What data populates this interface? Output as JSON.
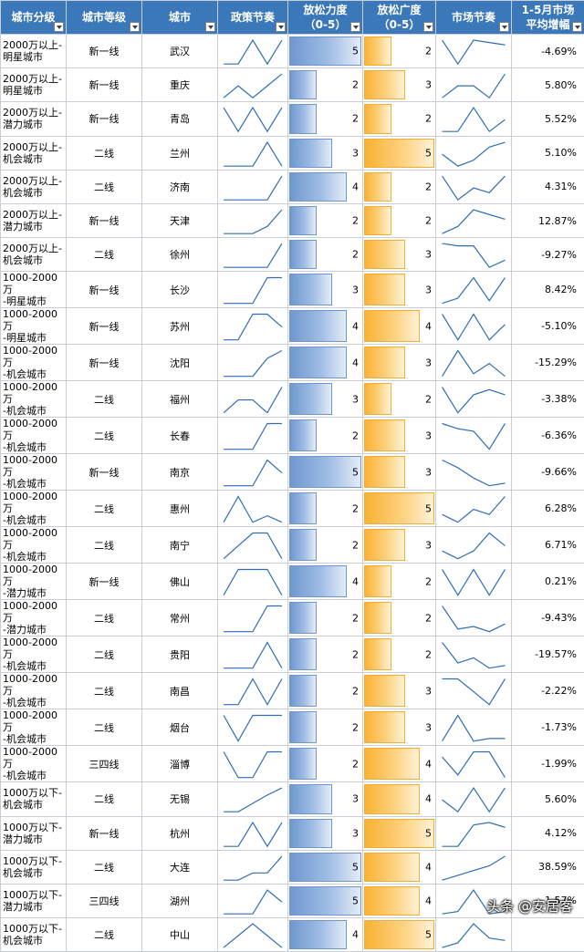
{
  "headers": {
    "segment": "城市分级",
    "tier": "城市等级",
    "city": "城市",
    "policy_rhythm": "政策节奏",
    "intensity_l1": "放松力度",
    "intensity_l2": "（0-5）",
    "breadth_l1": "放松广度",
    "breadth_l2": "（0-5）",
    "market_rhythm": "市场节奏",
    "growth_l1": "1-5月市场",
    "growth_l2": "平均增幅"
  },
  "colors": {
    "header_bg": "#3a78b9",
    "spark": "#2e6eb5",
    "intensity_bar": "#6f97cf",
    "breadth_bar": "#f9b233"
  },
  "max_score": 5,
  "rows": [
    {
      "seg1": "2000万以上-",
      "seg2": "明星城市",
      "tier": "新一线",
      "city": "武汉",
      "intensity": 5,
      "breadth": 2,
      "growth": "-4.69%",
      "policy": [
        0,
        0,
        2,
        0,
        2
      ],
      "market": [
        2,
        0,
        2,
        1.8,
        1.6
      ]
    },
    {
      "seg1": "2000万以上-",
      "seg2": "明星城市",
      "tier": "新一线",
      "city": "重庆",
      "intensity": 2,
      "breadth": 3,
      "growth": "5.80%",
      "policy": [
        0,
        1,
        0,
        1,
        2
      ],
      "market": [
        0,
        1,
        1,
        0,
        2
      ]
    },
    {
      "seg1": "2000万以上-",
      "seg2": "潜力城市",
      "tier": "新一线",
      "city": "青岛",
      "intensity": 2,
      "breadth": 2,
      "growth": "5.52%",
      "policy": [
        2,
        0,
        2,
        0,
        2
      ],
      "market": [
        0,
        0,
        2,
        0,
        1
      ]
    },
    {
      "seg1": "2000万以上-",
      "seg2": "机会城市",
      "tier": "二线",
      "city": "兰州",
      "intensity": 3,
      "breadth": 5,
      "growth": "5.10%",
      "policy": [
        0,
        0,
        0,
        2,
        0
      ],
      "market": [
        1,
        0,
        0.5,
        1.6,
        2
      ]
    },
    {
      "seg1": "2000万以上-",
      "seg2": "机会城市",
      "tier": "二线",
      "city": "济南",
      "intensity": 4,
      "breadth": 2,
      "growth": "4.31%",
      "policy": [
        0,
        0,
        0,
        0,
        2
      ],
      "market": [
        2,
        0,
        1,
        0.6,
        2
      ]
    },
    {
      "seg1": "2000万以上-",
      "seg2": "潜力城市",
      "tier": "新一线",
      "city": "天津",
      "intensity": 2,
      "breadth": 2,
      "growth": "12.87%",
      "policy": [
        0,
        0,
        0,
        0.6,
        2
      ],
      "market": [
        0,
        0.6,
        2,
        1.6,
        1.2
      ]
    },
    {
      "seg1": "2000万以上-",
      "seg2": "机会城市",
      "tier": "二线",
      "city": "徐州",
      "intensity": 2,
      "breadth": 3,
      "growth": "-9.27%",
      "policy": [
        0,
        0,
        0,
        0,
        2
      ],
      "market": [
        2,
        1.8,
        1.8,
        0,
        0.6
      ]
    },
    {
      "seg1": "1000-2000万",
      "seg2": "-明星城市",
      "tier": "新一线",
      "city": "长沙",
      "intensity": 3,
      "breadth": 3,
      "growth": "8.42%",
      "policy": [
        0,
        0,
        0,
        2,
        2
      ],
      "market": [
        0,
        0.4,
        2,
        0.2,
        2
      ]
    },
    {
      "seg1": "1000-2000万",
      "seg2": "-明星城市",
      "tier": "新一线",
      "city": "苏州",
      "intensity": 4,
      "breadth": 4,
      "growth": "-5.10%",
      "policy": [
        0,
        0,
        2,
        2,
        1
      ],
      "market": [
        2,
        0,
        2,
        0,
        1.2
      ]
    },
    {
      "seg1": "1000-2000万",
      "seg2": "-机会城市",
      "tier": "新一线",
      "city": "沈阳",
      "intensity": 4,
      "breadth": 3,
      "growth": "-15.29%",
      "policy": [
        0,
        0,
        0,
        1.4,
        2
      ],
      "market": [
        0,
        2,
        0.2,
        1,
        0
      ]
    },
    {
      "seg1": "1000-2000万",
      "seg2": "-机会城市",
      "tier": "二线",
      "city": "福州",
      "intensity": 3,
      "breadth": 2,
      "growth": "-3.38%",
      "policy": [
        0,
        1,
        1,
        0,
        2
      ],
      "market": [
        2,
        0,
        1.4,
        1.8,
        1.4
      ]
    },
    {
      "seg1": "1000-2000万",
      "seg2": "-机会城市",
      "tier": "二线",
      "city": "长春",
      "intensity": 2,
      "breadth": 3,
      "growth": "-6.36%",
      "policy": [
        0,
        0,
        0,
        2,
        2
      ],
      "market": [
        2,
        1.6,
        1.4,
        0,
        2
      ]
    },
    {
      "seg1": "1000-2000万",
      "seg2": "-机会城市",
      "tier": "新一线",
      "city": "南京",
      "intensity": 5,
      "breadth": 3,
      "growth": "-9.66%",
      "policy": [
        0,
        0,
        0,
        2,
        1
      ],
      "market": [
        2,
        1.4,
        0.6,
        0,
        0.2
      ]
    },
    {
      "seg1": "1000-2000万",
      "seg2": "-机会城市",
      "tier": "二线",
      "city": "惠州",
      "intensity": 2,
      "breadth": 5,
      "growth": "6.28%",
      "policy": [
        0,
        2,
        0,
        0.5,
        0
      ],
      "market": [
        0.6,
        0,
        1,
        0.6,
        2
      ]
    },
    {
      "seg1": "1000-2000万",
      "seg2": "-机会城市",
      "tier": "二线",
      "city": "南宁",
      "intensity": 2,
      "breadth": 3,
      "growth": "6.71%",
      "policy": [
        0,
        1,
        2,
        2,
        0
      ],
      "market": [
        0.6,
        0,
        0.6,
        2,
        1
      ]
    },
    {
      "seg1": "1000-2000万",
      "seg2": "-潜力城市",
      "tier": "新一线",
      "city": "佛山",
      "intensity": 4,
      "breadth": 2,
      "growth": "0.21%",
      "policy": [
        0,
        2,
        2,
        2,
        0
      ],
      "market": [
        2,
        0,
        2,
        0,
        2
      ]
    },
    {
      "seg1": "1000-2000万",
      "seg2": "-潜力城市",
      "tier": "二线",
      "city": "常州",
      "intensity": 2,
      "breadth": 2,
      "growth": "-9.43%",
      "policy": [
        0,
        0,
        0,
        2,
        2
      ],
      "market": [
        2,
        0.2,
        0.4,
        0,
        0.6
      ]
    },
    {
      "seg1": "1000-2000万",
      "seg2": "-机会城市",
      "tier": "二线",
      "city": "贵阳",
      "intensity": 2,
      "breadth": 2,
      "growth": "-19.57%",
      "policy": [
        0,
        0,
        0,
        2,
        0
      ],
      "market": [
        2,
        0.4,
        0.8,
        0,
        0.2
      ]
    },
    {
      "seg1": "1000-2000万",
      "seg2": "-机会城市",
      "tier": "二线",
      "city": "南昌",
      "intensity": 2,
      "breadth": 3,
      "growth": "-2.22%",
      "policy": [
        0,
        0,
        2,
        0,
        2
      ],
      "market": [
        2,
        2,
        1,
        0,
        2
      ]
    },
    {
      "seg1": "1000-2000万",
      "seg2": "-机会城市",
      "tier": "二线",
      "city": "烟台",
      "intensity": 2,
      "breadth": 3,
      "growth": "-1.73%",
      "policy": [
        2,
        0,
        2,
        2,
        2
      ],
      "market": [
        0,
        2,
        0,
        0.2,
        0.2
      ]
    },
    {
      "seg1": "1000-2000万",
      "seg2": "-机会城市",
      "tier": "三四线",
      "city": "淄博",
      "intensity": 2,
      "breadth": 4,
      "growth": "-1.99%",
      "policy": [
        2,
        0,
        0,
        2,
        2
      ],
      "market": [
        1.6,
        0.2,
        2,
        2,
        0
      ]
    },
    {
      "seg1": "1000万以下-",
      "seg2": "机会城市",
      "tier": "二线",
      "city": "无锡",
      "intensity": 3,
      "breadth": 4,
      "growth": "5.60%",
      "policy": [
        0,
        0,
        0.7,
        1.4,
        2
      ],
      "market": [
        1,
        0,
        2,
        0,
        2
      ]
    },
    {
      "seg1": "1000万以下-",
      "seg2": "潜力城市",
      "tier": "新一线",
      "city": "杭州",
      "intensity": 3,
      "breadth": 5,
      "growth": "4.12%",
      "policy": [
        0,
        0,
        2,
        0,
        2
      ],
      "market": [
        0,
        0,
        1.8,
        2,
        1.6
      ]
    },
    {
      "seg1": "1000万以下-",
      "seg2": "机会城市",
      "tier": "二线",
      "city": "大连",
      "intensity": 5,
      "breadth": 4,
      "growth": "38.59%",
      "policy": [
        0,
        0,
        0.6,
        0.6,
        2
      ],
      "market": [
        0,
        0.4,
        0.8,
        1.2,
        2
      ]
    },
    {
      "seg1": "1000万以下-",
      "seg2": "潜力城市",
      "tier": "三四线",
      "city": "湖州",
      "intensity": 5,
      "breadth": 4,
      "growth": "1.57%",
      "policy": [
        0,
        0,
        0,
        2,
        1
      ],
      "market": [
        0,
        0.2,
        2,
        0,
        0.2
      ]
    },
    {
      "seg1": "1000万以下-",
      "seg2": "机会城市",
      "tier": "二线",
      "city": "中山",
      "intensity": 4,
      "breadth": 5,
      "growth": "",
      "policy": [
        0,
        1,
        2,
        1,
        0
      ],
      "market": [
        0,
        0.4,
        2,
        0.8,
        0.6
      ]
    }
  ],
  "watermark": "头条 @安居客"
}
